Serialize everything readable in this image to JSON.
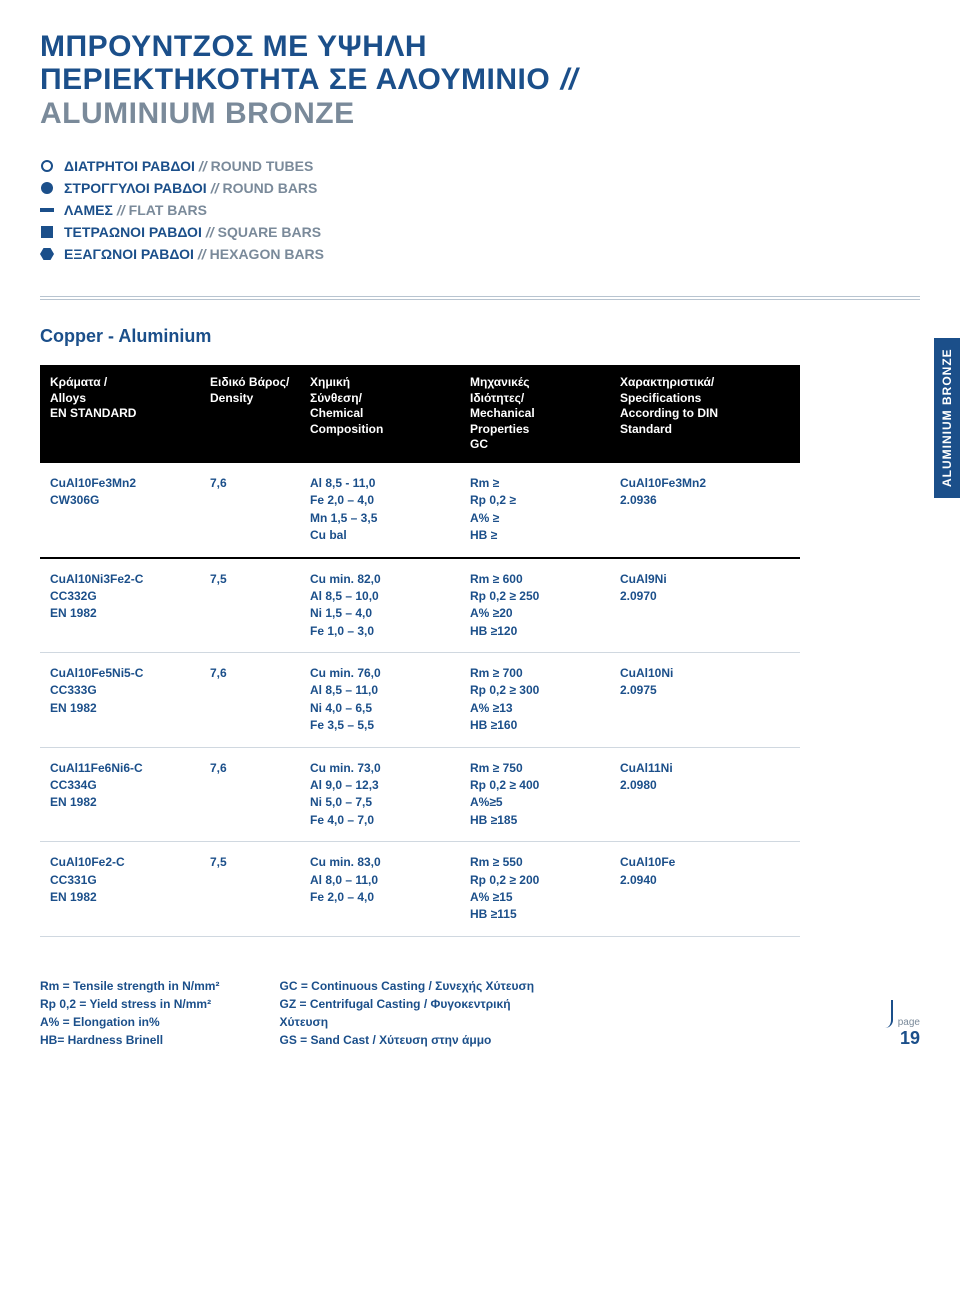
{
  "title": {
    "line1": "ΜΠΡΟΥΝΤΖΟΣ ΜΕ ΥΨΗΛΗ",
    "line2": "ΠΕΡΙΕΚΤΗΚΟΤΗΤΑ ΣΕ ΑΛΟΥΜΙΝΙΟ",
    "line3": "ALUMINIUM BRONZE",
    "slashes": "//"
  },
  "legend": [
    {
      "icon": "roundtube",
      "gr": "ΔΙΑΤΡΗΤΟΙ ΡΑΒΔΟΙ",
      "en": "ROUND TUBES"
    },
    {
      "icon": "roundbar",
      "gr": "ΣΤΡΟΓΓΥΛΟΙ ΡΑΒΔΟΙ",
      "en": "ROUND BARS"
    },
    {
      "icon": "flatbar",
      "gr": "ΛΑΜΕΣ",
      "en": "FLAT BARS"
    },
    {
      "icon": "squarebar",
      "gr": "ΤΕΤΡΑΩΝΟΙ ΡΑΒΔΟΙ",
      "en": "SQUARE BARS"
    },
    {
      "icon": "hexbar",
      "gr": "ΕΞΑΓΩΝΟΙ ΡΑΒΔΟΙ",
      "en": "HEXAGON BARS"
    }
  ],
  "legend_sep": "//",
  "section_label": "Copper - Aluminium",
  "side_tab": "ALUMINIUM BRONZE",
  "headers": {
    "alloy": "Κράματα /\nAlloys\nEN STANDARD",
    "density": "Ειδικό Βάρος/\nDensity",
    "chem": "Χημική\nΣύνθεση/\nChemical\nComposition",
    "mech": "Μηχανικές\nΙδιότητες/\nMechanical\nProperties\nGC",
    "spec": "Χαρακτηριστικά/\nSpecifications\nAccording to DIN\nStandard"
  },
  "rows": [
    {
      "alloy": "CuAl10Fe3Mn2\nCW306G",
      "density": "7,6",
      "chem": "Al 8,5 - 11,0\nFe 2,0 – 4,0\nMn 1,5 – 3,5\nCu bal",
      "mech": "Rm ≥\nRp 0,2 ≥\nA% ≥\nHB ≥",
      "spec": "CuAl10Fe3Mn2\n2.0936"
    },
    {
      "alloy": "CuAl10Ni3Fe2-C\nCC332G\nEN 1982",
      "density": "7,5",
      "chem": "Cu min. 82,0\nAl 8,5 – 10,0\nNi 1,5 – 4,0\nFe 1,0 – 3,0",
      "mech": "Rm ≥ 600\nRp 0,2 ≥ 250\nA% ≥20\nHB ≥120",
      "spec": "CuAl9Ni\n2.0970"
    },
    {
      "alloy": "CuAl10Fe5Ni5-C\nCC333G\nEN 1982",
      "density": "7,6",
      "chem": "Cu min. 76,0\nAl 8,5 – 11,0\nNi 4,0 – 6,5\nFe 3,5 – 5,5",
      "mech": "Rm ≥ 700\nRp 0,2 ≥ 300\nA% ≥13\nHB ≥160",
      "spec": "CuAl10Ni\n2.0975"
    },
    {
      "alloy": "CuAl11Fe6Ni6-C\nCC334G\nEN 1982",
      "density": "7,6",
      "chem": "Cu min. 73,0\nAl 9,0 – 12,3\nNi 5,0 – 7,5\nFe 4,0 – 7,0",
      "mech": "Rm ≥ 750\nRp 0,2 ≥ 400\nA%≥5\nHB ≥185",
      "spec": "CuAl11Ni\n2.0980"
    },
    {
      "alloy": "CuAl10Fe2-C\nCC331G\nEN 1982",
      "density": "7,5",
      "chem": "Cu min. 83,0\nAl 8,0 – 11,0\nFe 2,0 – 4,0",
      "mech": "Rm ≥  550\nRp 0,2 ≥ 200\nA% ≥15\nHB ≥115",
      "spec": "CuAl10Fe\n2.0940"
    }
  ],
  "footnotes": {
    "left": "Rm = Tensile strength in N/mm²\nRp 0,2 = Yield stress in N/mm²\nA% = Elongation in%\nHB= Hardness Brinell",
    "right": "GC = Continuous Casting / Συνεχής Χύτευση\nGZ = Centrifugal Casting / Φυγοκεντρική\nΧύτευση\nGS = Sand Cast / Χύτευση στην άμμο"
  },
  "page": {
    "label": "page",
    "number": "19"
  },
  "colors": {
    "brand": "#1b4f8a",
    "muted": "#7a8a9a",
    "black": "#000000",
    "white": "#ffffff",
    "rule": "#d0d8e0"
  }
}
